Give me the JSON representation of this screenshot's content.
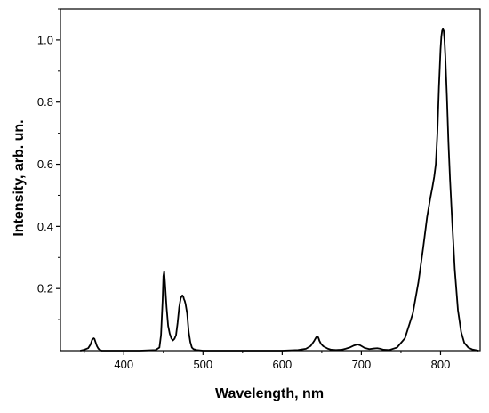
{
  "chart_data": {
    "type": "line",
    "xlabel": "Wavelength, nm",
    "ylabel": "Intensity, arb. un.",
    "xlim": [
      320,
      850
    ],
    "ylim": [
      0,
      1.1
    ],
    "xticks": [
      400,
      500,
      600,
      700,
      800
    ],
    "yticks": [
      0.2,
      0.4,
      0.6,
      0.8,
      1.0
    ],
    "ytick_labels": [
      "0.2",
      "0.4",
      "0.6",
      "0.8",
      "1.0"
    ],
    "grid": false,
    "series": [
      {
        "line_color": "#000000",
        "x": [
          345,
          350,
          355,
          358,
          360,
          362,
          363,
          364,
          366,
          368,
          372,
          380,
          400,
          420,
          440,
          445,
          447,
          449,
          450,
          451,
          452,
          454,
          456,
          458,
          460,
          462,
          464,
          466,
          468,
          470,
          472,
          474,
          475,
          476,
          477,
          478,
          480,
          481,
          482,
          484,
          486,
          488,
          492,
          500,
          520,
          560,
          600,
          620,
          630,
          636,
          640,
          643,
          645,
          646,
          647,
          649,
          652,
          655,
          658,
          662,
          668,
          675,
          680,
          685,
          690,
          695,
          698,
          700,
          704,
          710,
          716,
          720,
          724,
          728,
          735,
          745,
          755,
          765,
          772,
          778,
          783,
          787,
          790,
          792,
          794,
          796,
          798,
          800,
          801,
          802,
          803,
          804,
          805,
          806,
          808,
          810,
          812,
          815,
          818,
          822,
          826,
          830,
          835,
          840,
          848
        ],
        "y": [
          0.0,
          0.003,
          0.008,
          0.02,
          0.035,
          0.04,
          0.038,
          0.03,
          0.015,
          0.006,
          0.0,
          0.0,
          0.0,
          0.0,
          0.002,
          0.01,
          0.05,
          0.16,
          0.24,
          0.255,
          0.22,
          0.14,
          0.08,
          0.055,
          0.04,
          0.033,
          0.038,
          0.05,
          0.09,
          0.14,
          0.17,
          0.178,
          0.175,
          0.166,
          0.16,
          0.15,
          0.12,
          0.09,
          0.06,
          0.028,
          0.01,
          0.005,
          0.002,
          0.0,
          0.0,
          0.0,
          0.0,
          0.002,
          0.006,
          0.015,
          0.03,
          0.043,
          0.045,
          0.04,
          0.032,
          0.022,
          0.014,
          0.01,
          0.006,
          0.003,
          0.002,
          0.003,
          0.006,
          0.01,
          0.016,
          0.02,
          0.018,
          0.015,
          0.009,
          0.005,
          0.007,
          0.008,
          0.006,
          0.003,
          0.002,
          0.01,
          0.04,
          0.12,
          0.22,
          0.33,
          0.43,
          0.49,
          0.53,
          0.56,
          0.6,
          0.7,
          0.85,
          0.97,
          1.01,
          1.03,
          1.035,
          1.03,
          1.0,
          0.95,
          0.82,
          0.67,
          0.55,
          0.4,
          0.26,
          0.13,
          0.06,
          0.025,
          0.01,
          0.004,
          0.0
        ]
      }
    ]
  }
}
